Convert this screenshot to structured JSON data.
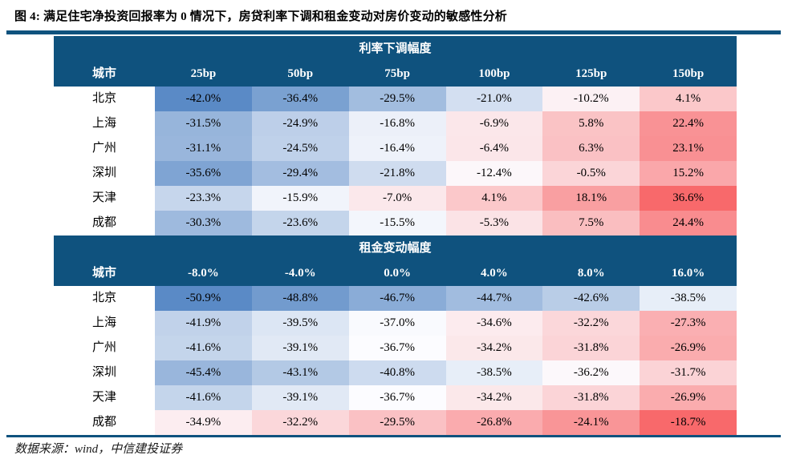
{
  "title": "图 4: 满足住宅净投资回报率为 0 情况下，房贷利率下调和租金变动对房价变动的敏感性分析",
  "source": "数据来源：wind，中信建投证券",
  "colors": {
    "navy": "#0F527E",
    "scale_min_blue": "#5A8AC6",
    "scale_mid_white": "#FCFCFF",
    "scale_max_red": "#F8696B"
  },
  "chart_data": [
    {
      "type": "heatmap",
      "title": "利率下调幅度",
      "row_header": "城市",
      "columns": [
        "25bp",
        "50bp",
        "75bp",
        "100bp",
        "125bp",
        "150bp"
      ],
      "rows": [
        "北京",
        "上海",
        "广州",
        "深圳",
        "天津",
        "成都"
      ],
      "values": [
        [
          -42.0,
          -36.4,
          -29.5,
          -21.0,
          -10.2,
          4.1
        ],
        [
          -31.5,
          -24.9,
          -16.8,
          -6.9,
          5.8,
          22.4
        ],
        [
          -31.1,
          -24.5,
          -16.4,
          -6.4,
          6.3,
          23.1
        ],
        [
          -35.6,
          -29.4,
          -21.8,
          -12.4,
          -0.5,
          15.2
        ],
        [
          -23.3,
          -15.9,
          -7.0,
          4.1,
          18.1,
          36.6
        ],
        [
          -30.3,
          -23.6,
          -15.5,
          -5.3,
          7.5,
          24.4
        ]
      ],
      "value_format": "percent_one_decimal",
      "color_scale": "blue-white-red, min/median/max per table"
    },
    {
      "type": "heatmap",
      "title": "租金变动幅度",
      "row_header": "城市",
      "columns": [
        "-8.0%",
        "-4.0%",
        "0.0%",
        "4.0%",
        "8.0%",
        "16.0%"
      ],
      "rows": [
        "北京",
        "上海",
        "广州",
        "深圳",
        "天津",
        "成都"
      ],
      "values": [
        [
          -50.9,
          -48.8,
          -46.7,
          -44.7,
          -42.6,
          -38.5
        ],
        [
          -41.9,
          -39.5,
          -37.0,
          -34.6,
          -32.2,
          -27.3
        ],
        [
          -41.6,
          -39.1,
          -36.7,
          -34.2,
          -31.8,
          -26.9
        ],
        [
          -45.4,
          -43.1,
          -40.8,
          -38.5,
          -36.2,
          -31.7
        ],
        [
          -41.6,
          -39.1,
          -36.7,
          -34.2,
          -31.8,
          -26.9
        ],
        [
          -34.9,
          -32.2,
          -29.5,
          -26.8,
          -24.1,
          -18.7
        ]
      ],
      "value_format": "percent_one_decimal",
      "color_scale": "blue-white-red, min/median/max per table"
    }
  ]
}
